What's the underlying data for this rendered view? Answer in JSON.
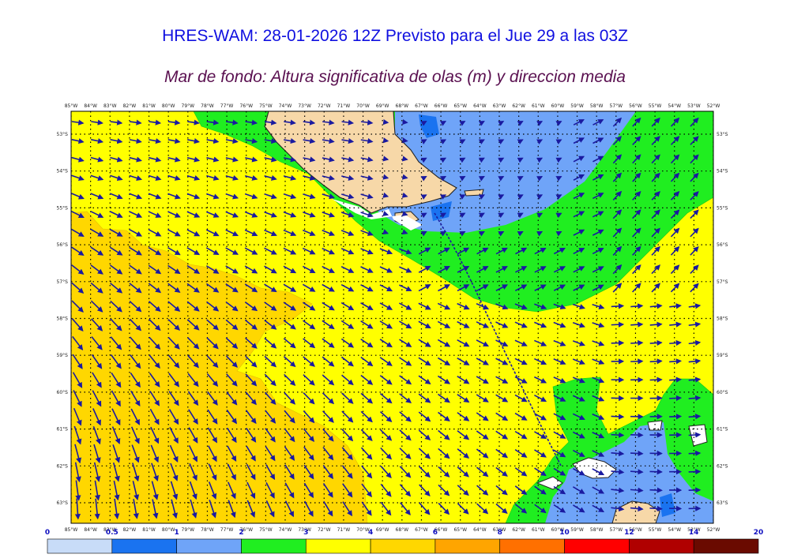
{
  "header": {
    "title": "HRES-WAM: 28-01-2026 12Z Previsto para el Jue 29 a las 03Z",
    "subtitle": "Mar de fondo: Altura significativa de olas (m) y direccion media"
  },
  "map": {
    "lon_range": [
      -85,
      -52
    ],
    "lat_range": [
      -53,
      -63
    ],
    "lon_ticks": [
      "85°W",
      "84°W",
      "83°W",
      "82°W",
      "81°W",
      "80°W",
      "79°W",
      "78°W",
      "77°W",
      "76°W",
      "75°W",
      "74°W",
      "73°W",
      "72°W",
      "71°W",
      "70°W",
      "69°W",
      "68°W",
      "67°W",
      "66°W",
      "65°W",
      "64°W",
      "63°W",
      "62°W",
      "61°W",
      "60°W",
      "59°W",
      "58°W",
      "57°W",
      "56°W",
      "55°W",
      "54°W",
      "53°W",
      "52°W"
    ],
    "lat_ticks": [
      "53°S",
      "54°S",
      "55°S",
      "56°S",
      "57°S",
      "58°S",
      "59°S",
      "60°S",
      "61°S",
      "62°S",
      "63°S"
    ],
    "grid": true,
    "arrow_color": "#1a1aa0"
  },
  "colorbar": {
    "labels": [
      "0",
      "0.5",
      "1",
      "2",
      "3",
      "4",
      "6",
      "8",
      "10",
      "12",
      "14",
      "20"
    ],
    "colors": [
      "#c8dcf8",
      "#1a73f0",
      "#6fa4f8",
      "#20ee20",
      "#ffff00",
      "#ffd700",
      "#ffa500",
      "#ff7000",
      "#ff0000",
      "#b00000",
      "#6a0a00",
      "#333333"
    ]
  }
}
